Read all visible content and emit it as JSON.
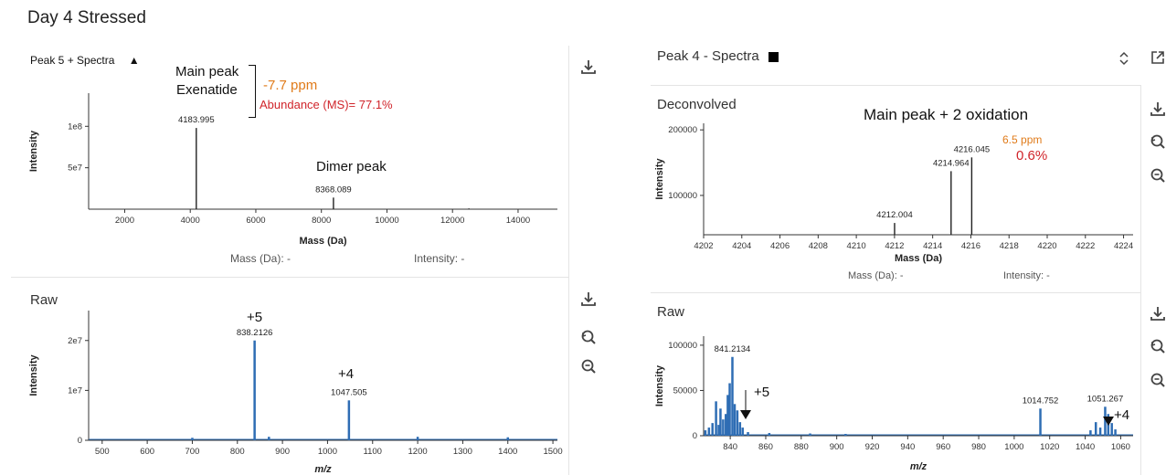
{
  "page_title": "Day 4 Stressed",
  "left": {
    "top_panel": {
      "title": "Peak 5 + Spectra",
      "marker": "▲",
      "readout_mass": "Mass (Da): -",
      "readout_intensity": "Intensity: -",
      "annotations": {
        "main_peak_line1": "Main peak",
        "main_peak_line2": "Exenatide",
        "ppm": "-7.7 ppm",
        "abundance": "Abundance (MS)= 77.1%",
        "dimer": "Dimer peak"
      },
      "colors": {
        "ppm": "#e07b1a",
        "abundance": "#d0242a",
        "trace": "#222222"
      }
    },
    "raw_panel": {
      "title": "Raw",
      "annotations": {
        "charge5": "+5",
        "charge4": "+4"
      }
    }
  },
  "right": {
    "header_title": "Peak 4 - Spectra",
    "deconvolved_panel": {
      "title": "Deconvolved",
      "readout_mass": "Mass (Da): -",
      "readout_intensity": "Intensity: -",
      "annotations": {
        "main": "Main peak + 2 oxidation",
        "ppm": "6.5 ppm",
        "pct": "0.6%"
      },
      "colors": {
        "ppm": "#e07b1a",
        "pct": "#d0242a"
      }
    },
    "raw_panel": {
      "title": "Raw",
      "annotations": {
        "charge5": "+5",
        "charge4": "+4"
      }
    }
  },
  "icons": [
    "download-icon",
    "zoom-reset-icon",
    "zoom-out-icon",
    "expand-icon",
    "sort-icon"
  ],
  "chart_data": [
    {
      "id": "left_deconvolved",
      "type": "line",
      "xlabel": "Mass (Da)",
      "ylabel": "Intensity",
      "xlim": [
        900,
        15200
      ],
      "ylim": [
        0,
        140000000
      ],
      "xticks": [
        2000,
        4000,
        6000,
        8000,
        10000,
        12000,
        14000
      ],
      "xtick_labels": [
        "2000",
        "4000",
        "6000",
        "8000",
        "10000",
        "12000",
        "14000"
      ],
      "yticks": [
        50000000,
        100000000
      ],
      "ytick_labels": [
        "5e7",
        "1e8"
      ],
      "peaks": [
        {
          "x": 4183.995,
          "y": 98000000,
          "label": "4183.995"
        },
        {
          "x": 8368.089,
          "y": 14000000,
          "label": "8368.089"
        },
        {
          "x": 12500,
          "y": 900000,
          "label": ""
        }
      ]
    },
    {
      "id": "left_raw",
      "type": "line",
      "color": "#2e6db4",
      "xlabel": "m/z",
      "ylabel": "Intensity",
      "xlim": [
        470,
        1510
      ],
      "ylim": [
        0,
        26000000
      ],
      "xticks": [
        500,
        600,
        700,
        800,
        900,
        1000,
        1100,
        1200,
        1300,
        1400,
        1500
      ],
      "xtick_labels": [
        "500",
        "600",
        "700",
        "800",
        "900",
        "1000",
        "1100",
        "1200",
        "1300",
        "1400",
        "1500"
      ],
      "yticks": [
        0,
        10000000,
        20000000
      ],
      "ytick_labels": [
        "0",
        "1e7",
        "2e7"
      ],
      "peaks": [
        {
          "x": 838.2126,
          "y": 20000000,
          "label": "838.2126"
        },
        {
          "x": 1047.505,
          "y": 8000000,
          "label": "1047.505"
        },
        {
          "x": 700,
          "y": 500000,
          "label": ""
        },
        {
          "x": 870,
          "y": 700000,
          "label": ""
        },
        {
          "x": 1200,
          "y": 700000,
          "label": ""
        },
        {
          "x": 1400,
          "y": 600000,
          "label": ""
        }
      ]
    },
    {
      "id": "right_deconvolved",
      "type": "line",
      "xlabel": "Mass (Da)",
      "ylabel": "Intensity",
      "xlim": [
        4202,
        4224.5
      ],
      "ylim": [
        40000,
        210000
      ],
      "xticks": [
        4202,
        4204,
        4206,
        4208,
        4210,
        4212,
        4214,
        4216,
        4218,
        4220,
        4222,
        4224
      ],
      "xtick_labels": [
        "4202",
        "4204",
        "4206",
        "4208",
        "4210",
        "4212",
        "4214",
        "4216",
        "4218",
        "4220",
        "4222",
        "4224"
      ],
      "yticks": [
        100000,
        200000
      ],
      "ytick_labels": [
        "100000",
        "200000"
      ],
      "peaks": [
        {
          "x": 4212.004,
          "y": 58000,
          "label": "4212.004"
        },
        {
          "x": 4214.964,
          "y": 137000,
          "label": "4214.964"
        },
        {
          "x": 4216.045,
          "y": 158000,
          "label": "4216.045"
        }
      ]
    },
    {
      "id": "right_raw",
      "type": "line",
      "color": "#2e6db4",
      "xlabel": "m/z",
      "ylabel": "Intensity",
      "xlim": [
        825,
        1067
      ],
      "ylim": [
        0,
        110000
      ],
      "xticks": [
        840,
        860,
        880,
        900,
        920,
        940,
        960,
        980,
        1000,
        1020,
        1040,
        1060
      ],
      "xtick_labels": [
        "840",
        "860",
        "880",
        "900",
        "920",
        "940",
        "960",
        "980",
        "1000",
        "1020",
        "1040",
        "1060"
      ],
      "yticks": [
        0,
        50000,
        100000
      ],
      "ytick_labels": [
        "0",
        "50000",
        "100000"
      ],
      "peaks": [
        {
          "x": 826,
          "y": 6000,
          "label": ""
        },
        {
          "x": 828,
          "y": 9000,
          "label": ""
        },
        {
          "x": 830,
          "y": 14000,
          "label": ""
        },
        {
          "x": 832,
          "y": 38000,
          "label": ""
        },
        {
          "x": 833.5,
          "y": 12000,
          "label": ""
        },
        {
          "x": 834.5,
          "y": 30000,
          "label": ""
        },
        {
          "x": 836,
          "y": 18000,
          "label": ""
        },
        {
          "x": 837.5,
          "y": 24000,
          "label": ""
        },
        {
          "x": 838.6,
          "y": 45000,
          "label": ""
        },
        {
          "x": 839.7,
          "y": 58000,
          "label": ""
        },
        {
          "x": 841.2134,
          "y": 87000,
          "label": "841.2134"
        },
        {
          "x": 842.5,
          "y": 35000,
          "label": ""
        },
        {
          "x": 844,
          "y": 28000,
          "label": ""
        },
        {
          "x": 845.5,
          "y": 15000,
          "label": ""
        },
        {
          "x": 847,
          "y": 9000,
          "label": ""
        },
        {
          "x": 850,
          "y": 4000,
          "label": ""
        },
        {
          "x": 862,
          "y": 3000,
          "label": ""
        },
        {
          "x": 885,
          "y": 2500,
          "label": ""
        },
        {
          "x": 905,
          "y": 2000,
          "label": ""
        },
        {
          "x": 1014.752,
          "y": 30000,
          "label": "1014.752"
        },
        {
          "x": 1043,
          "y": 6000,
          "label": ""
        },
        {
          "x": 1046,
          "y": 15000,
          "label": ""
        },
        {
          "x": 1048.5,
          "y": 9000,
          "label": ""
        },
        {
          "x": 1051.267,
          "y": 32000,
          "label": "1051.267"
        },
        {
          "x": 1053,
          "y": 24000,
          "label": ""
        },
        {
          "x": 1055,
          "y": 14000,
          "label": ""
        },
        {
          "x": 1057,
          "y": 7000,
          "label": ""
        }
      ]
    }
  ]
}
